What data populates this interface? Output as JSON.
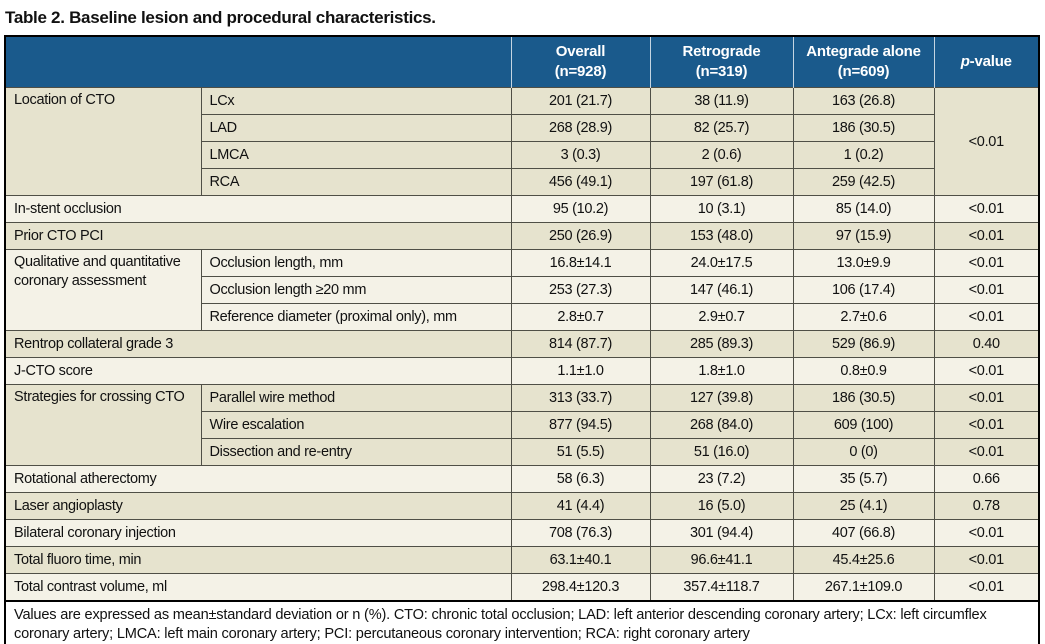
{
  "title": "Table 2. Baseline lesion and procedural characteristics.",
  "colors": {
    "header_bg": "#1a5a8c",
    "row_beige": "#e6e3ce",
    "row_light": "#f4f2e7",
    "grid_line": "#4f4f46",
    "outer_border": "#000000"
  },
  "header": {
    "columns": [
      {
        "label": "Overall",
        "n": "(n=928)"
      },
      {
        "label": "Retrograde",
        "n": "(n=319)"
      },
      {
        "label": "Antegrade alone",
        "n": "(n=609)"
      }
    ],
    "p_column": {
      "italic": "p",
      "rest": "-value"
    }
  },
  "table": {
    "groups": [
      {
        "label": "Location of CTO",
        "p": "<0.01",
        "rows": [
          {
            "label": "LCx",
            "overall": "201 (21.7)",
            "retrograde": "38 (11.9)",
            "antegrade": "163 (26.8)"
          },
          {
            "label": "LAD",
            "overall": "268 (28.9)",
            "retrograde": "82 (25.7)",
            "antegrade": "186 (30.5)"
          },
          {
            "label": "LMCA",
            "overall": "3 (0.3)",
            "retrograde": "2 (0.6)",
            "antegrade": "1 (0.2)"
          },
          {
            "label": "RCA",
            "overall": "456 (49.1)",
            "retrograde": "197 (61.8)",
            "antegrade": "259 (42.5)"
          }
        ]
      },
      {
        "label": "In-stent occlusion",
        "overall": "95 (10.2)",
        "retrograde": "10 (3.1)",
        "antegrade": "85 (14.0)",
        "p": "<0.01"
      },
      {
        "label": "Prior CTO PCI",
        "overall": "250 (26.9)",
        "retrograde": "153 (48.0)",
        "antegrade": "97 (15.9)",
        "p": "<0.01"
      },
      {
        "label": "Qualitative and quantitative coronary assessment",
        "rows": [
          {
            "label": "Occlusion length, mm",
            "overall": "16.8±14.1",
            "retrograde": "24.0±17.5",
            "antegrade": "13.0±9.9",
            "p": "<0.01"
          },
          {
            "label": "Occlusion length ≥20 mm",
            "overall": "253 (27.3)",
            "retrograde": "147 (46.1)",
            "antegrade": "106 (17.4)",
            "p": "<0.01"
          },
          {
            "label": "Reference diameter (proximal only), mm",
            "overall": "2.8±0.7",
            "retrograde": "2.9±0.7",
            "antegrade": "2.7±0.6",
            "p": "<0.01"
          }
        ]
      },
      {
        "label": "Rentrop collateral grade 3",
        "overall": "814 (87.7)",
        "retrograde": "285 (89.3)",
        "antegrade": "529 (86.9)",
        "p": "0.40"
      },
      {
        "label": "J-CTO score",
        "overall": "1.1±1.0",
        "retrograde": "1.8±1.0",
        "antegrade": "0.8±0.9",
        "p": "<0.01"
      },
      {
        "label": "Strategies for crossing CTO",
        "rows": [
          {
            "label": "Parallel wire method",
            "overall": "313 (33.7)",
            "retrograde": "127 (39.8)",
            "antegrade": "186 (30.5)",
            "p": "<0.01"
          },
          {
            "label": "Wire escalation",
            "overall": "877 (94.5)",
            "retrograde": "268 (84.0)",
            "antegrade": "609 (100)",
            "p": "<0.01"
          },
          {
            "label": "Dissection and re-entry",
            "overall": "51 (5.5)",
            "retrograde": "51 (16.0)",
            "antegrade": "0 (0)",
            "p": "<0.01"
          }
        ]
      },
      {
        "label": "Rotational atherectomy",
        "overall": "58 (6.3)",
        "retrograde": "23 (7.2)",
        "antegrade": "35 (5.7)",
        "p": "0.66"
      },
      {
        "label": "Laser angioplasty",
        "overall": "41 (4.4)",
        "retrograde": "16 (5.0)",
        "antegrade": "25 (4.1)",
        "p": "0.78"
      },
      {
        "label": "Bilateral coronary injection",
        "overall": "708 (76.3)",
        "retrograde": "301 (94.4)",
        "antegrade": "407 (66.8)",
        "p": "<0.01"
      },
      {
        "label": "Total fluoro time, min",
        "overall": "63.1±40.1",
        "retrograde": "96.6±41.1",
        "antegrade": "45.4±25.6",
        "p": "<0.01"
      },
      {
        "label": "Total contrast volume, ml",
        "overall": "298.4±120.3",
        "retrograde": "357.4±118.7",
        "antegrade": "267.1±109.0",
        "p": "<0.01"
      }
    ]
  },
  "footnote": "Values are expressed as mean±standard deviation or n (%). CTO: chronic total occlusion; LAD: left anterior descending coronary artery; LCx: left circumflex coronary artery; LMCA: left main coronary artery; PCI: percutaneous coronary intervention; RCA: right coronary artery"
}
